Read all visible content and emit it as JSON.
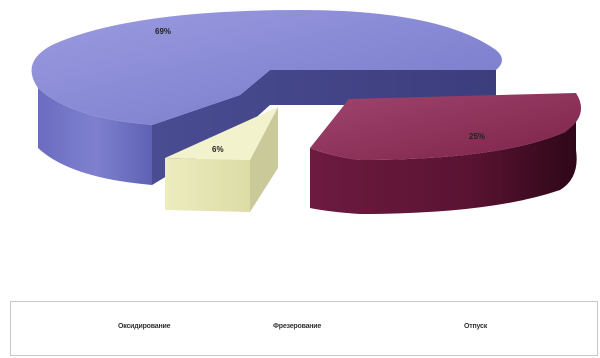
{
  "chart_data": {
    "type": "pie",
    "three_d": true,
    "exploded": true,
    "series": [
      {
        "name": "",
        "slices": [
          {
            "label": "Оксидирование",
            "value": 69,
            "data_label": "69%",
            "color": "#7f80cf"
          },
          {
            "label": "Фрезерование",
            "value": 6,
            "data_label": "6%",
            "color": "#e6e6b5"
          },
          {
            "label": "Отпуск",
            "value": 25,
            "data_label": "25%",
            "color": "#7a1f48"
          }
        ]
      }
    ],
    "legend": {
      "placement": "bottom",
      "entries": [
        "Оксидирование",
        "Фрезерование",
        "Отпуск"
      ]
    },
    "title": ""
  }
}
